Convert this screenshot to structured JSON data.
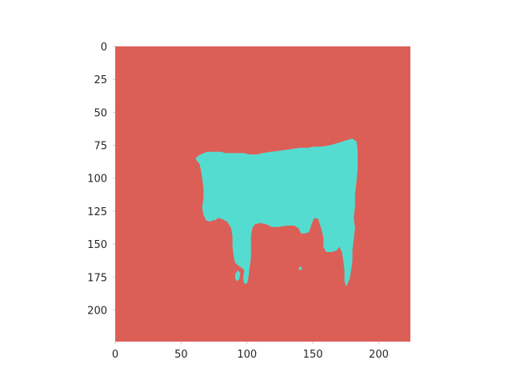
{
  "chart_data": {
    "type": "image",
    "title": "",
    "xlabel": "",
    "ylabel": "",
    "xlim": [
      0,
      224
    ],
    "ylim": [
      224,
      0
    ],
    "grid": false,
    "x_ticks": [
      0,
      50,
      100,
      150,
      200
    ],
    "y_ticks": [
      0,
      25,
      50,
      75,
      100,
      125,
      150,
      175,
      200
    ],
    "colors": {
      "background_class": "#dc5f57",
      "foreground_class": "#55dcd1"
    },
    "mask_regions": [
      {
        "name": "cow",
        "class": "foreground_class",
        "outline": [
          [
            61,
            85
          ],
          [
            63,
            83
          ],
          [
            67,
            81
          ],
          [
            70,
            80
          ],
          [
            73,
            80
          ],
          [
            76,
            80
          ],
          [
            80,
            80
          ],
          [
            84,
            81
          ],
          [
            92,
            81
          ],
          [
            98,
            81
          ],
          [
            102,
            82
          ],
          [
            107,
            82
          ],
          [
            112,
            81
          ],
          [
            118,
            80
          ],
          [
            126,
            79
          ],
          [
            133,
            78
          ],
          [
            140,
            77
          ],
          [
            146,
            77
          ],
          [
            151,
            76
          ],
          [
            157,
            76
          ],
          [
            163,
            75
          ],
          [
            170,
            73
          ],
          [
            176,
            71
          ],
          [
            180,
            70
          ],
          [
            183,
            72
          ],
          [
            184,
            80
          ],
          [
            184,
            93
          ],
          [
            183,
            103
          ],
          [
            182,
            112
          ],
          [
            182,
            121
          ],
          [
            181,
            130
          ],
          [
            182,
            138
          ],
          [
            181,
            146
          ],
          [
            180,
            155
          ],
          [
            180,
            163
          ],
          [
            179,
            170
          ],
          [
            178,
            176
          ],
          [
            176,
            181
          ],
          [
            175,
            182
          ],
          [
            174,
            178
          ],
          [
            174,
            170
          ],
          [
            173,
            162
          ],
          [
            172,
            156
          ],
          [
            170,
            152
          ],
          [
            168,
            155
          ],
          [
            164,
            156
          ],
          [
            160,
            156
          ],
          [
            158,
            152
          ],
          [
            158,
            145
          ],
          [
            156,
            137
          ],
          [
            154,
            131
          ],
          [
            151,
            130
          ],
          [
            149,
            135
          ],
          [
            147,
            141
          ],
          [
            144,
            142
          ],
          [
            141,
            142
          ],
          [
            139,
            138
          ],
          [
            136,
            136
          ],
          [
            130,
            136
          ],
          [
            124,
            137
          ],
          [
            119,
            137
          ],
          [
            115,
            135
          ],
          [
            110,
            134
          ],
          [
            106,
            135
          ],
          [
            104,
            138
          ],
          [
            103,
            144
          ],
          [
            103,
            152
          ],
          [
            103,
            160
          ],
          [
            102,
            168
          ],
          [
            101,
            176
          ],
          [
            100,
            180
          ],
          [
            98,
            180
          ],
          [
            97,
            176
          ],
          [
            98,
            170
          ],
          [
            96,
            168
          ],
          [
            93,
            166
          ],
          [
            91,
            164
          ],
          [
            90,
            160
          ],
          [
            89,
            152
          ],
          [
            89,
            144
          ],
          [
            88,
            138
          ],
          [
            85,
            133
          ],
          [
            81,
            131
          ],
          [
            78,
            130
          ],
          [
            76,
            132
          ],
          [
            74,
            132
          ],
          [
            72,
            133
          ],
          [
            69,
            132
          ],
          [
            67,
            128
          ],
          [
            66,
            122
          ],
          [
            67,
            115
          ],
          [
            67,
            108
          ],
          [
            66,
            100
          ],
          [
            65,
            94
          ],
          [
            64,
            89
          ],
          [
            62,
            87
          ]
        ]
      },
      {
        "name": "cow-fragment-left",
        "class": "foreground_class",
        "outline": [
          [
            91,
            173
          ],
          [
            93,
            170
          ],
          [
            95,
            172
          ],
          [
            94,
            177
          ],
          [
            92,
            178
          ],
          [
            91,
            176
          ]
        ]
      },
      {
        "name": "cow-fragment-middle",
        "class": "foreground_class",
        "outline": [
          [
            139,
            168
          ],
          [
            141,
            167
          ],
          [
            142,
            169
          ],
          [
            140,
            170
          ]
        ]
      }
    ]
  }
}
